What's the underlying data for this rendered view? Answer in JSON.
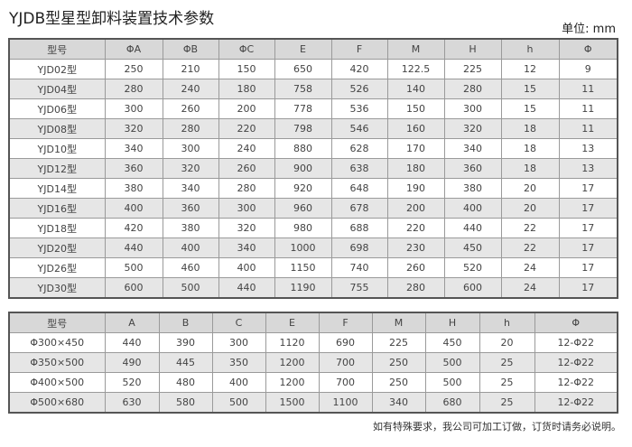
{
  "title": "YJDB型星型卸料装置技术参数",
  "unit": "单位: mm",
  "table1": {
    "headers": [
      "型号",
      "ΦA",
      "ΦB",
      "ΦC",
      "E",
      "F",
      "M",
      "H",
      "h",
      "Φ"
    ],
    "rows": [
      [
        "YJD02型",
        "250",
        "210",
        "150",
        "650",
        "420",
        "122.5",
        "225",
        "12",
        "9"
      ],
      [
        "YJD04型",
        "280",
        "240",
        "180",
        "758",
        "526",
        "140",
        "280",
        "15",
        "11"
      ],
      [
        "YJD06型",
        "300",
        "260",
        "200",
        "778",
        "536",
        "150",
        "300",
        "15",
        "11"
      ],
      [
        "YJD08型",
        "320",
        "280",
        "220",
        "798",
        "546",
        "160",
        "320",
        "18",
        "11"
      ],
      [
        "YJD10型",
        "340",
        "300",
        "240",
        "880",
        "628",
        "170",
        "340",
        "18",
        "13"
      ],
      [
        "YJD12型",
        "360",
        "320",
        "260",
        "900",
        "638",
        "180",
        "360",
        "18",
        "13"
      ],
      [
        "YJD14型",
        "380",
        "340",
        "280",
        "920",
        "648",
        "190",
        "380",
        "20",
        "17"
      ],
      [
        "YJD16型",
        "400",
        "360",
        "300",
        "960",
        "678",
        "200",
        "400",
        "20",
        "17"
      ],
      [
        "YJD18型",
        "420",
        "380",
        "320",
        "980",
        "688",
        "220",
        "440",
        "22",
        "17"
      ],
      [
        "YJD20型",
        "440",
        "400",
        "340",
        "1000",
        "698",
        "230",
        "450",
        "22",
        "17"
      ],
      [
        "YJD26型",
        "500",
        "460",
        "400",
        "1150",
        "740",
        "260",
        "520",
        "24",
        "17"
      ],
      [
        "YJD30型",
        "600",
        "500",
        "440",
        "1190",
        "755",
        "280",
        "600",
        "24",
        "17"
      ]
    ]
  },
  "table2": {
    "headers": [
      "型号",
      "A",
      "B",
      "C",
      "E",
      "F",
      "M",
      "H",
      "h",
      "Φ"
    ],
    "rows": [
      [
        "Φ300×450",
        "440",
        "390",
        "300",
        "1120",
        "690",
        "225",
        "450",
        "20",
        "12-Φ22"
      ],
      [
        "Φ350×500",
        "490",
        "445",
        "350",
        "1200",
        "700",
        "250",
        "500",
        "25",
        "12-Φ22"
      ],
      [
        "Φ400×500",
        "520",
        "480",
        "400",
        "1200",
        "700",
        "250",
        "500",
        "25",
        "12-Φ22"
      ],
      [
        "Φ500×680",
        "630",
        "580",
        "500",
        "1500",
        "1100",
        "340",
        "680",
        "25",
        "12-Φ22"
      ]
    ]
  },
  "footer": "如有特殊要求，我公司可加工订做，订货时请务必说明。"
}
